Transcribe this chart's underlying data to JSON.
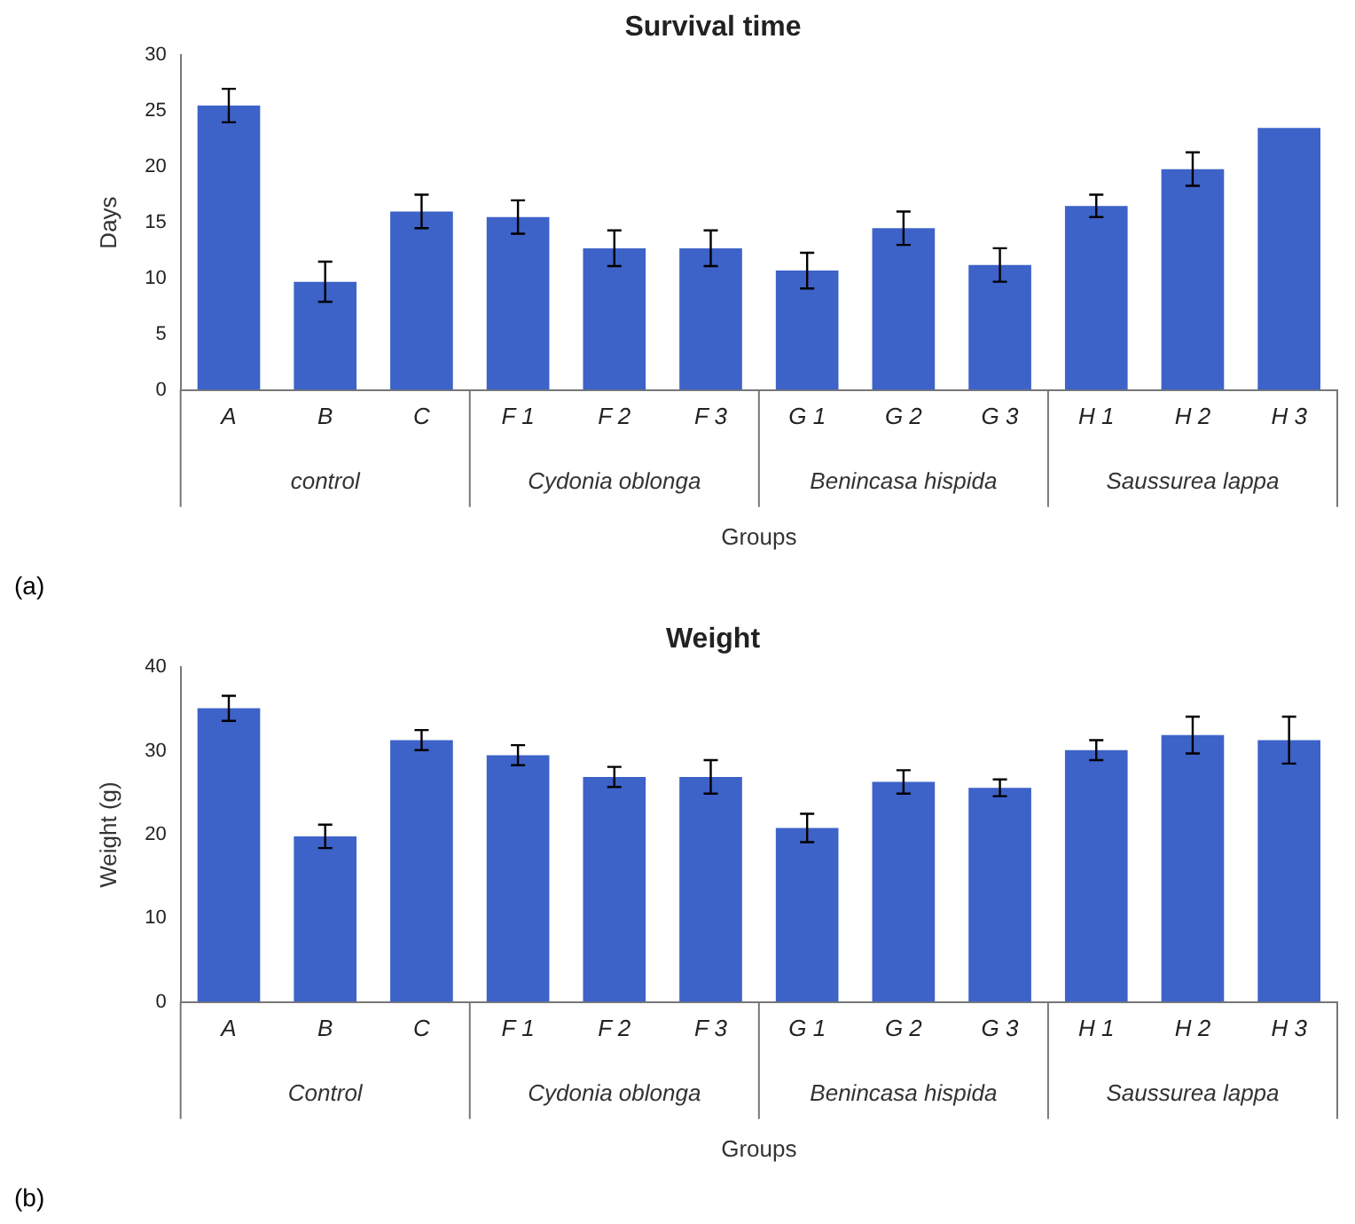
{
  "chart_data": [
    {
      "type": "bar",
      "title": "Survival time",
      "xlabel": "Groups",
      "ylabel": "Days",
      "categories": [
        "A",
        "B",
        "C",
        "F 1",
        "F 2",
        "F 3",
        "G 1",
        "G 2",
        "G 3",
        "H 1",
        "H 2",
        "H 3"
      ],
      "color": "#3d62c8",
      "values": [
        25.5,
        9.7,
        16,
        15.5,
        12.7,
        12.7,
        10.7,
        14.5,
        11.2,
        16.5,
        19.8,
        23.5
      ],
      "errors": [
        1.5,
        1.8,
        1.5,
        1.5,
        1.6,
        1.6,
        1.6,
        1.5,
        1.5,
        1,
        1.5,
        null
      ],
      "ylim": [
        0,
        30
      ],
      "yticks": [
        0,
        5,
        10,
        15,
        20,
        25,
        30
      ],
      "grid": false,
      "legend": false,
      "annotations": [
        "control",
        "Cydonia oblonga",
        "Benincasa hispida",
        "Saussurea lappa",
        "(a)"
      ]
    },
    {
      "type": "bar",
      "title": "Weight",
      "xlabel": "Groups",
      "ylabel": "Weight (g)",
      "categories": [
        "A",
        "B",
        "C",
        "F 1",
        "F 2",
        "F 3",
        "G 1",
        "G 2",
        "G 3",
        "H 1",
        "H 2",
        "H 3"
      ],
      "color": "#3d62c8",
      "values": [
        35.1,
        19.8,
        31.3,
        29.5,
        26.9,
        26.9,
        20.8,
        26.3,
        25.6,
        30.1,
        31.9,
        31.3
      ],
      "errors": [
        1.5,
        1.4,
        1.2,
        1.2,
        1.2,
        2,
        1.7,
        1.4,
        1,
        1.2,
        2.2,
        2.8
      ],
      "ylim": [
        0,
        40
      ],
      "yticks": [
        0,
        10,
        20,
        30,
        40
      ],
      "grid": false,
      "legend": false,
      "annotations": [
        "Control",
        "Cydonia oblonga",
        "Benincasa hispida",
        "Saussurea lappa",
        "(b)"
      ]
    }
  ]
}
